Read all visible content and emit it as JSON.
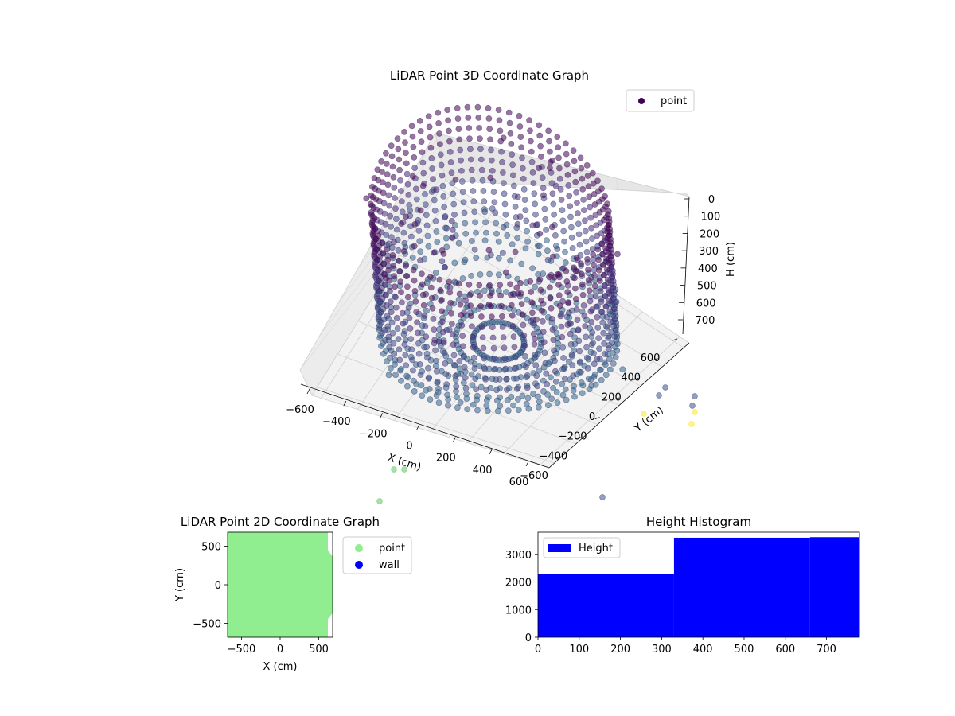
{
  "chart_data": [
    {
      "type": "scatter",
      "projection": "3d",
      "title": "LiDAR Point 3D Coordinate Graph",
      "xlabel": "X (cm)",
      "ylabel": "Y (cm)",
      "zlabel": "H (cm)",
      "xticks": [
        "−600",
        "−400",
        "−200",
        "0",
        "200",
        "400",
        "600"
      ],
      "yticks": [
        "−600",
        "−400",
        "−200",
        "0",
        "200",
        "400",
        "600"
      ],
      "zticks": [
        "0",
        "100",
        "200",
        "300",
        "400",
        "500",
        "600",
        "700"
      ],
      "xlim": [
        -650,
        650
      ],
      "ylim": [
        -650,
        650
      ],
      "zlim": [
        750,
        0
      ],
      "z_axis_inverted": true,
      "grid": true,
      "legend": {
        "entries": [
          "point"
        ],
        "placement": "top-right"
      },
      "series": [
        {
          "name": "point",
          "colormap": "viridis",
          "color_by": "height"
        }
      ],
      "colors": {
        "marker_dark": "#440154",
        "marker_mid": "#3b528b",
        "marker_light": "#5ec962",
        "marker_yellow": "#fde725"
      }
    },
    {
      "type": "scatter",
      "title": "LiDAR Point 2D Coordinate Graph",
      "xlabel": "X (cm)",
      "ylabel": "Y (cm)",
      "xticks": [
        -500,
        0,
        500
      ],
      "yticks": [
        -500,
        0,
        500
      ],
      "xlim": [
        -680,
        680
      ],
      "ylim": [
        -680,
        680
      ],
      "legend": {
        "entries": [
          {
            "label": "point",
            "color": "#90ee90"
          },
          {
            "label": "wall",
            "color": "#0000ff"
          }
        ],
        "placement": "outside-right"
      }
    },
    {
      "type": "bar",
      "title": "Height Histogram",
      "legend": {
        "entries": [
          {
            "label": "Height",
            "color": "#0000ff"
          }
        ],
        "placement": "top-left"
      },
      "bins": [
        {
          "start": 0,
          "end": 330,
          "count": 2300
        },
        {
          "start": 330,
          "end": 660,
          "count": 3600
        },
        {
          "start": 660,
          "end": 780,
          "count": 3620
        }
      ],
      "xticks": [
        0,
        100,
        200,
        300,
        400,
        500,
        600,
        700
      ],
      "yticks": [
        0,
        1000,
        2000,
        3000
      ],
      "xlim": [
        0,
        780
      ],
      "ylim": [
        0,
        3800
      ],
      "bar_color": "#0000ff"
    }
  ]
}
